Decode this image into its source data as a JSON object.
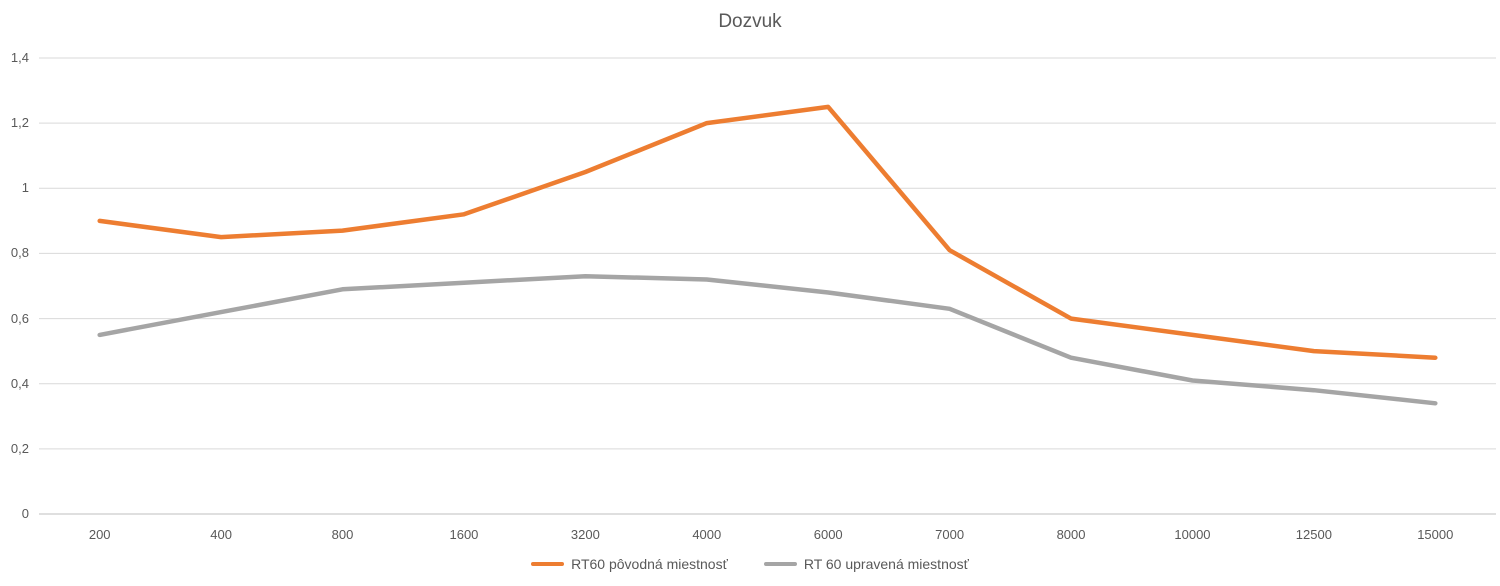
{
  "chart_data": {
    "type": "line",
    "title": "Dozvuk",
    "categories": [
      "200",
      "400",
      "800",
      "1600",
      "3200",
      "4000",
      "6000",
      "7000",
      "8000",
      "10000",
      "12500",
      "15000"
    ],
    "series": [
      {
        "name": "RT60 pôvodná miestnosť",
        "color": "#ED7D31",
        "values": [
          0.9,
          0.85,
          0.87,
          0.92,
          1.05,
          1.2,
          1.25,
          0.81,
          0.6,
          0.55,
          0.5,
          0.48
        ]
      },
      {
        "name": "RT 60 upravená miestnosť",
        "color": "#A5A5A5",
        "values": [
          0.55,
          0.62,
          0.69,
          0.71,
          0.73,
          0.72,
          0.68,
          0.63,
          0.48,
          0.41,
          0.38,
          0.34
        ]
      }
    ],
    "xlabel": "",
    "ylabel": "",
    "ylim": [
      0,
      1.4
    ],
    "y_ticks": [
      {
        "v": 0,
        "label": "0"
      },
      {
        "v": 0.2,
        "label": "0,2"
      },
      {
        "v": 0.4,
        "label": "0,4"
      },
      {
        "v": 0.6,
        "label": "0,6"
      },
      {
        "v": 0.8,
        "label": "0,8"
      },
      {
        "v": 1,
        "label": "1"
      },
      {
        "v": 1.2,
        "label": "1,2"
      },
      {
        "v": 1.4,
        "label": "1,4"
      }
    ],
    "grid": true,
    "legend_position": "bottom",
    "colors": {
      "gridline": "#D9D9D9",
      "axis_line": "#BFBFBF",
      "text": "#595959",
      "background": "#FFFFFF"
    }
  }
}
